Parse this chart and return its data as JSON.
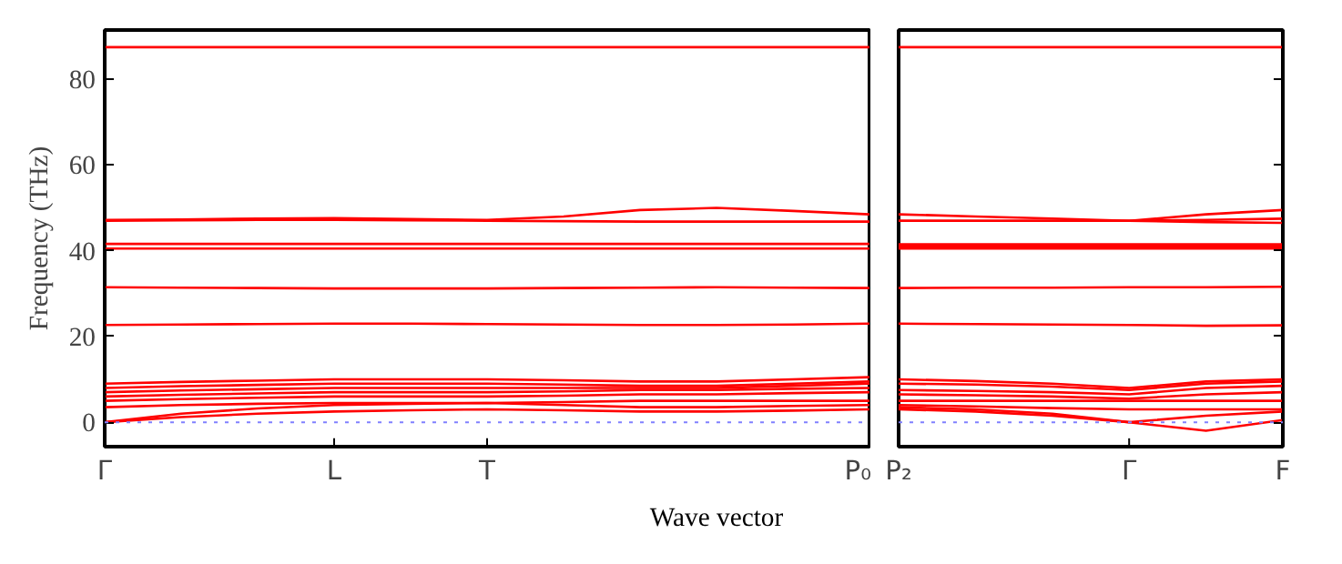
{
  "chart_data": [
    {
      "type": "line",
      "xlabel": "Wave vector",
      "ylabel": "Frequency (THz)",
      "ylim": [
        -5.7,
        91.5
      ],
      "categories": [
        "Γ",
        null,
        null,
        "L",
        null,
        "T",
        null,
        null,
        null,
        null,
        "P₀"
      ],
      "yticks": [
        0,
        20,
        40,
        60,
        80
      ],
      "grid": false,
      "ref_lines": [
        {
          "axis": "y",
          "value": 0,
          "color": "#8080ff",
          "line_style": "dotted"
        }
      ],
      "series": [
        {
          "color": "#ff0000",
          "values": [
            87.5,
            87.5,
            87.5,
            87.5,
            87.5,
            87.5,
            87.5,
            87.5,
            87.5,
            87.5,
            87.5
          ]
        },
        {
          "color": "#ff0000",
          "values": [
            47.2,
            47.3,
            47.5,
            47.6,
            47.4,
            47.2,
            48,
            49.5,
            50,
            49.3,
            48.5
          ]
        },
        {
          "color": "#ff0000",
          "values": [
            47.0,
            47.1,
            47.2,
            47.2,
            47.1,
            47.0,
            46.9,
            46.8,
            46.8,
            46.8,
            46.8
          ]
        },
        {
          "color": "#ff0000",
          "values": [
            41.6,
            41.6,
            41.6,
            41.6,
            41.6,
            41.6,
            41.6,
            41.6,
            41.6,
            41.6,
            41.6
          ]
        },
        {
          "color": "#ff0000",
          "values": [
            40.5,
            40.5,
            40.5,
            40.5,
            40.5,
            40.5,
            40.5,
            40.5,
            40.5,
            40.5,
            40.5
          ]
        },
        {
          "color": "#ff0000",
          "values": [
            31.5,
            31.4,
            31.3,
            31.2,
            31.2,
            31.2,
            31.3,
            31.4,
            31.5,
            31.4,
            31.3
          ]
        },
        {
          "color": "#ff0000",
          "values": [
            22.7,
            22.8,
            22.9,
            23.0,
            23.0,
            22.9,
            22.8,
            22.7,
            22.7,
            22.8,
            23.0
          ]
        },
        {
          "color": "#ff0000",
          "values": [
            0,
            1.2,
            2.0,
            2.5,
            2.8,
            3.0,
            2.8,
            2.5,
            2.5,
            2.7,
            3.0
          ]
        },
        {
          "color": "#ff0000",
          "values": [
            0,
            2.0,
            3.2,
            4.0,
            4.3,
            4.5,
            4.0,
            3.5,
            3.5,
            3.8,
            4.0
          ]
        },
        {
          "color": "#ff0000",
          "values": [
            3.5,
            4.0,
            4.3,
            4.5,
            4.5,
            4.5,
            4.7,
            5.0,
            5.0,
            5.0,
            5.0
          ]
        },
        {
          "color": "#ff0000",
          "values": [
            5.0,
            5.4,
            5.7,
            6.0,
            6.0,
            6.0,
            6.2,
            6.5,
            6.5,
            6.8,
            7.0
          ]
        },
        {
          "color": "#ff0000",
          "values": [
            6.0,
            6.4,
            6.7,
            7.0,
            7.0,
            7.0,
            7.2,
            7.5,
            7.5,
            7.8,
            8.0
          ]
        },
        {
          "color": "#ff0000",
          "values": [
            7.0,
            7.4,
            7.7,
            8.0,
            8.0,
            8.0,
            8.0,
            8.0,
            8.0,
            8.5,
            9.0
          ]
        },
        {
          "color": "#ff0000",
          "values": [
            8.0,
            8.4,
            8.7,
            9.0,
            9.0,
            9.0,
            8.8,
            8.5,
            8.5,
            9.0,
            9.5
          ]
        },
        {
          "color": "#ff0000",
          "values": [
            9.0,
            9.4,
            9.7,
            10.0,
            10.0,
            10.0,
            9.8,
            9.5,
            9.5,
            10.0,
            10.5
          ]
        }
      ]
    },
    {
      "type": "line",
      "ylim": [
        -5.7,
        91.5
      ],
      "tick_labels": "x",
      "categories": [
        "P₂",
        null,
        null,
        "Γ",
        null,
        "F"
      ],
      "yticks": [
        0,
        20,
        40,
        60,
        80
      ],
      "grid": false,
      "ref_lines": [
        {
          "axis": "y",
          "value": 0,
          "color": "#8080ff",
          "line_style": "dotted"
        }
      ],
      "series": [
        {
          "color": "#ff0000",
          "values": [
            87.5,
            87.5,
            87.5,
            87.5,
            87.5,
            87.5
          ]
        },
        {
          "color": "#ff0000",
          "values": [
            48.5,
            48.0,
            47.5,
            47.0,
            48.5,
            49.5
          ]
        },
        {
          "color": "#ff0000",
          "values": [
            47.0,
            47.0,
            47.0,
            47.0,
            47.2,
            47.5
          ]
        },
        {
          "color": "#ff0000",
          "values": [
            47.0,
            47.0,
            47.0,
            47.0,
            46.7,
            46.5
          ]
        },
        {
          "color": "#ff0000",
          "values": [
            41.5,
            41.5,
            41.5,
            41.5,
            41.5,
            41.5
          ]
        },
        {
          "color": "#ff0000",
          "values": [
            41.0,
            41.0,
            41.0,
            41.0,
            41.0,
            41.0
          ]
        },
        {
          "color": "#ff0000",
          "values": [
            40.5,
            40.5,
            40.5,
            40.5,
            40.5,
            40.5
          ]
        },
        {
          "color": "#ff0000",
          "values": [
            31.3,
            31.4,
            31.4,
            31.5,
            31.5,
            31.6
          ]
        },
        {
          "color": "#ff0000",
          "values": [
            23.0,
            22.9,
            22.8,
            22.7,
            22.5,
            22.6
          ]
        },
        {
          "color": "#ff0000",
          "values": [
            3.0,
            2.5,
            1.5,
            0,
            -2.0,
            0.5
          ]
        },
        {
          "color": "#ff0000",
          "values": [
            3.5,
            3.0,
            2.0,
            0,
            1.5,
            2.5
          ]
        },
        {
          "color": "#ff0000",
          "values": [
            4.0,
            3.7,
            3.3,
            3.0,
            3.0,
            3.0
          ]
        },
        {
          "color": "#ff0000",
          "values": [
            5.0,
            5.0,
            5.0,
            5.0,
            5.0,
            5.0
          ]
        },
        {
          "color": "#ff0000",
          "values": [
            6.5,
            6.3,
            6.0,
            5.5,
            6.5,
            7.0
          ]
        },
        {
          "color": "#ff0000",
          "values": [
            7.5,
            7.3,
            7.0,
            6.5,
            8.0,
            8.5
          ]
        },
        {
          "color": "#ff0000",
          "values": [
            9.0,
            8.8,
            8.3,
            7.5,
            9.0,
            9.5
          ]
        },
        {
          "color": "#ff0000",
          "values": [
            10.0,
            9.6,
            9.0,
            8.0,
            9.5,
            10.0
          ]
        }
      ]
    }
  ]
}
